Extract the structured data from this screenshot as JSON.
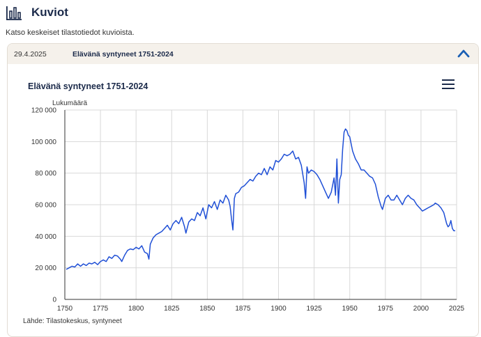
{
  "page": {
    "title": "Kuviot",
    "subtitle": "Katso keskeiset tilastotiedot kuvioista.",
    "icons": {
      "header": "bar-chart-icon",
      "collapse": "chevron-up-icon",
      "menu": "hamburger-menu-icon"
    }
  },
  "panel": {
    "date": "29.4.2025",
    "name": "Elävänä syntyneet 1751-2024"
  },
  "colors": {
    "line": "#1f4fd6",
    "accent": "#1a5fb4",
    "text": "#1b2a4a"
  },
  "chart_data": {
    "type": "line",
    "title": "Elävänä syntyneet 1751-2024",
    "ylabel": "Lukumäärä",
    "xlabel": "",
    "source": "Lähde: Tilastokeskus, syntyneet",
    "xlim": [
      1750,
      2025
    ],
    "ylim": [
      0,
      120000
    ],
    "xticks": [
      1750,
      1775,
      1800,
      1825,
      1850,
      1875,
      1900,
      1925,
      1950,
      1975,
      2000,
      2025
    ],
    "yticks": [
      0,
      20000,
      40000,
      60000,
      80000,
      100000,
      120000
    ],
    "ytick_labels": [
      "0",
      "20 000",
      "40 000",
      "60 000",
      "80 000",
      "100 000",
      "120 000"
    ],
    "grid": true,
    "series": [
      {
        "x": [
          1751,
          1753,
          1755,
          1757,
          1759,
          1761,
          1763,
          1765,
          1767,
          1769,
          1771,
          1773,
          1775,
          1777,
          1779,
          1781,
          1783,
          1785,
          1787,
          1789,
          1790,
          1792,
          1794,
          1796,
          1798,
          1800,
          1802,
          1804,
          1806,
          1808,
          1809,
          1810,
          1812,
          1814,
          1816,
          1818,
          1820,
          1822,
          1824,
          1826,
          1828,
          1830,
          1832,
          1834,
          1835,
          1837,
          1839,
          1841,
          1843,
          1845,
          1847,
          1849,
          1851,
          1853,
          1855,
          1857,
          1859,
          1861,
          1863,
          1865,
          1866,
          1867,
          1868,
          1869,
          1870,
          1872,
          1874,
          1876,
          1878,
          1880,
          1882,
          1884,
          1886,
          1888,
          1890,
          1892,
          1894,
          1896,
          1898,
          1900,
          1902,
          1904,
          1906,
          1908,
          1910,
          1912,
          1914,
          1916,
          1918,
          1919,
          1920,
          1921,
          1923,
          1925,
          1927,
          1929,
          1931,
          1933,
          1935,
          1937,
          1939,
          1940,
          1941,
          1942,
          1943,
          1944,
          1945,
          1946,
          1947,
          1948,
          1949,
          1950,
          1952,
          1954,
          1956,
          1958,
          1960,
          1962,
          1964,
          1966,
          1968,
          1970,
          1972,
          1973,
          1975,
          1977,
          1979,
          1981,
          1983,
          1985,
          1987,
          1989,
          1991,
          1993,
          1995,
          1997,
          1999,
          2001,
          2003,
          2005,
          2007,
          2009,
          2010,
          2012,
          2014,
          2016,
          2018,
          2019,
          2020,
          2021,
          2022,
          2023,
          2024
        ],
        "y": [
          19000,
          20000,
          21000,
          20500,
          22500,
          21000,
          22500,
          21500,
          23000,
          22500,
          23500,
          22000,
          24000,
          25000,
          24000,
          27000,
          26000,
          28000,
          27500,
          25500,
          24000,
          28000,
          31000,
          32000,
          31500,
          33000,
          32000,
          34000,
          30000,
          29000,
          25500,
          35000,
          39000,
          41000,
          42000,
          43000,
          45000,
          47000,
          44000,
          48000,
          50000,
          48000,
          52000,
          46000,
          42000,
          49000,
          51000,
          50000,
          55000,
          53000,
          58000,
          51000,
          60000,
          58000,
          62000,
          57000,
          63000,
          61000,
          66000,
          63000,
          59000,
          51000,
          44000,
          64000,
          67000,
          68000,
          71000,
          72000,
          74000,
          76000,
          75000,
          78000,
          80000,
          79000,
          83000,
          79000,
          84000,
          82000,
          88000,
          87000,
          89000,
          92000,
          91000,
          92000,
          94000,
          89000,
          90000,
          85000,
          74000,
          64000,
          84000,
          80000,
          82000,
          81000,
          79000,
          76000,
          72000,
          68000,
          64000,
          68000,
          77000,
          66000,
          89000,
          61000,
          76000,
          79000,
          95000,
          106000,
          108000,
          107000,
          104000,
          103000,
          94000,
          89000,
          86000,
          82000,
          82000,
          80000,
          78000,
          77000,
          73000,
          65000,
          59000,
          57000,
          64000,
          66000,
          63000,
          63000,
          66000,
          63000,
          60000,
          64000,
          66000,
          64000,
          63000,
          60000,
          58000,
          56000,
          57000,
          58000,
          59000,
          60000,
          61000,
          60000,
          58000,
          55000,
          48000,
          46000,
          47000,
          50000,
          45000,
          43500,
          43500
        ]
      }
    ]
  }
}
